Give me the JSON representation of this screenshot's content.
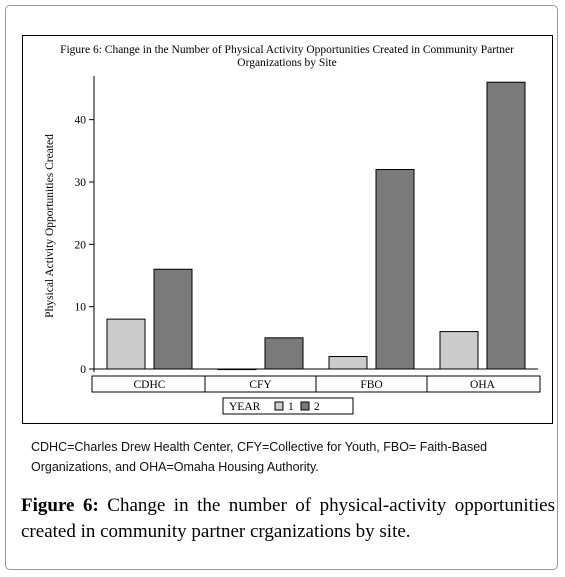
{
  "chart_data": {
    "type": "bar",
    "title_lines": [
      "Figure 6: Change in the Number of Physical Activity Opportunities Created in Community Partner",
      "Organizations by Site"
    ],
    "ylabel": "Physical Activity Opportunities Created",
    "xlabel": "",
    "categories": [
      "CDHC",
      "CFY",
      "FBO",
      "OHA"
    ],
    "series": [
      {
        "name": "1",
        "values": [
          8,
          0,
          2,
          6
        ],
        "color": "#cccccc"
      },
      {
        "name": "2",
        "values": [
          16,
          5,
          32,
          46
        ],
        "color": "#7a7a7a"
      }
    ],
    "ylim": [
      0,
      47
    ],
    "yticks": [
      0,
      10,
      20,
      30,
      40
    ],
    "legend": {
      "title": "YEAR",
      "placement": "bottom-center"
    },
    "grid": false
  },
  "note": "CDHC=Charles Drew Health Center, CFY=Collective for Youth, FBO= Faith-Based Organizations, and OHA=Omaha Housing Authority.",
  "caption": {
    "label": "Figure 6:",
    "text": " Change in the number of physical-activity opportunities created in community partner crganizations by site."
  }
}
